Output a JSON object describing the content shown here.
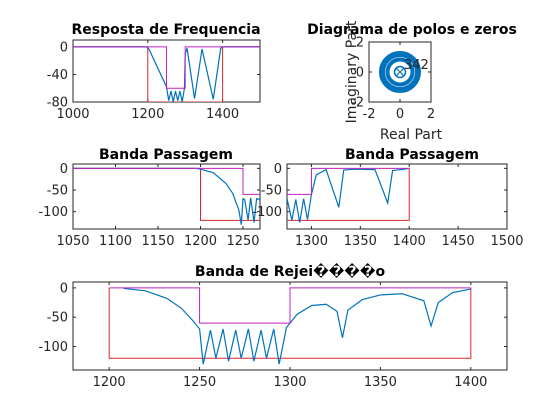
{
  "colors": {
    "response": "#0072bd",
    "spec_mask": "#d62728",
    "template": "#c020c0",
    "pole_fill": "#0072bd",
    "axis": "#262626"
  },
  "chart_data": [
    {
      "id": "freq_response",
      "type": "line",
      "title": "Resposta de Frequencia",
      "xlim": [
        1000,
        1500
      ],
      "ylim": [
        -80,
        10
      ],
      "xticks": [
        1000,
        1200,
        1400
      ],
      "yticks": [
        0,
        -40,
        -80
      ],
      "series": [
        {
          "role": "response",
          "x": [
            1000,
            1197,
            1203,
            1250,
            1256,
            1262,
            1268,
            1274,
            1280,
            1286,
            1292,
            1298,
            1300,
            1305,
            1325,
            1345,
            1375,
            1395,
            1400,
            1500
          ],
          "y": [
            0,
            0,
            -3,
            -58,
            -78,
            -64,
            -80,
            -64,
            -78,
            -64,
            -80,
            -60,
            -10,
            -2,
            -75,
            -3,
            -76,
            -2,
            0,
            0
          ]
        },
        {
          "role": "spec_mask",
          "x": [
            1000,
            1200,
            1200,
            1400,
            1400,
            1500
          ],
          "y": [
            0,
            0,
            -80,
            -80,
            0,
            0
          ]
        },
        {
          "role": "template",
          "x": [
            1000,
            1250,
            1250,
            1300,
            1300,
            1500
          ],
          "y": [
            0,
            0,
            -60,
            -60,
            0,
            0
          ]
        }
      ]
    },
    {
      "id": "pole_zero",
      "type": "scatter",
      "title": "Diagrama de polos e zeros",
      "xlabel": "Real Part",
      "ylabel": "Imaginary Part",
      "xlim": [
        -2,
        2
      ],
      "ylim": [
        -2,
        2
      ],
      "xticks": [
        -2,
        0,
        2
      ],
      "yticks": [
        2,
        0,
        -2
      ],
      "annotation": "342",
      "series": [
        {
          "role": "poles_ring",
          "radius": 1
        },
        {
          "role": "zeros_cluster",
          "x": 0,
          "y": 0
        }
      ]
    },
    {
      "id": "pass_band_left",
      "type": "line",
      "title": "Banda Passagem",
      "xlim": [
        1050,
        1270
      ],
      "ylim": [
        -140,
        10
      ],
      "xticks": [
        1050,
        1100,
        1150,
        1200,
        1250
      ],
      "yticks": [
        0,
        -50,
        -100
      ],
      "series": [
        {
          "role": "response",
          "x": [
            1050,
            1195,
            1200,
            1215,
            1230,
            1238,
            1242,
            1245,
            1248,
            1250,
            1252,
            1256,
            1259,
            1263,
            1266,
            1270
          ],
          "y": [
            0,
            0,
            -2,
            -10,
            -35,
            -58,
            -80,
            -95,
            -130,
            -70,
            -72,
            -120,
            -68,
            -125,
            -70,
            -72
          ]
        },
        {
          "role": "spec_mask",
          "x": [
            1050,
            1200,
            1200,
            1270
          ],
          "y": [
            0,
            0,
            -120,
            -120
          ]
        },
        {
          "role": "template",
          "x": [
            1050,
            1250,
            1250,
            1270
          ],
          "y": [
            0,
            0,
            -60,
            -60
          ]
        }
      ]
    },
    {
      "id": "pass_band_right",
      "type": "line",
      "title": "Banda Passagem",
      "xlim": [
        1275,
        1500
      ],
      "ylim": [
        -140,
        10
      ],
      "xticks": [
        1300,
        1350,
        1400,
        1450,
        1500
      ],
      "yticks": [
        0,
        -50,
        -100
      ],
      "series": [
        {
          "role": "response",
          "x": [
            1275,
            1280,
            1284,
            1288,
            1292,
            1296,
            1300,
            1305,
            1315,
            1328,
            1333,
            1345,
            1365,
            1378,
            1383,
            1395,
            1400
          ],
          "y": [
            -70,
            -120,
            -72,
            -125,
            -70,
            -118,
            -60,
            -15,
            -3,
            -90,
            -4,
            -2,
            -3,
            -80,
            -5,
            -2,
            0
          ]
        },
        {
          "role": "spec_mask",
          "x": [
            1275,
            1400,
            1400
          ],
          "y": [
            -120,
            -120,
            0
          ]
        },
        {
          "role": "template",
          "x": [
            1275,
            1300,
            1300,
            1400
          ],
          "y": [
            -60,
            -60,
            0,
            0
          ]
        }
      ]
    },
    {
      "id": "stop_band",
      "type": "line",
      "title": "Banda de Rejei����o",
      "xlim": [
        1180,
        1420
      ],
      "ylim": [
        -140,
        10
      ],
      "xticks": [
        1200,
        1250,
        1300,
        1350,
        1400
      ],
      "yticks": [
        0,
        -50,
        -100
      ],
      "series": [
        {
          "role": "response",
          "x": [
            1208,
            1220,
            1232,
            1240,
            1246,
            1250,
            1252,
            1256,
            1259,
            1263,
            1266,
            1270,
            1273,
            1277,
            1280,
            1284,
            1287,
            1291,
            1294,
            1298,
            1300,
            1304,
            1312,
            1320,
            1326,
            1329,
            1332,
            1340,
            1350,
            1362,
            1374,
            1378,
            1382,
            1390,
            1400
          ],
          "y": [
            -1,
            -5,
            -18,
            -35,
            -55,
            -70,
            -130,
            -72,
            -120,
            -70,
            -125,
            -72,
            -120,
            -70,
            -125,
            -72,
            -120,
            -70,
            -130,
            -68,
            -60,
            -45,
            -30,
            -28,
            -40,
            -85,
            -38,
            -20,
            -12,
            -10,
            -22,
            -65,
            -25,
            -8,
            -2
          ]
        },
        {
          "role": "spec_mask",
          "x": [
            1200,
            1200,
            1400,
            1400
          ],
          "y": [
            0,
            -120,
            -120,
            0
          ]
        },
        {
          "role": "template",
          "x": [
            1200,
            1250,
            1250,
            1300,
            1300,
            1400
          ],
          "y": [
            0,
            0,
            -60,
            -60,
            0,
            0
          ]
        }
      ]
    }
  ]
}
